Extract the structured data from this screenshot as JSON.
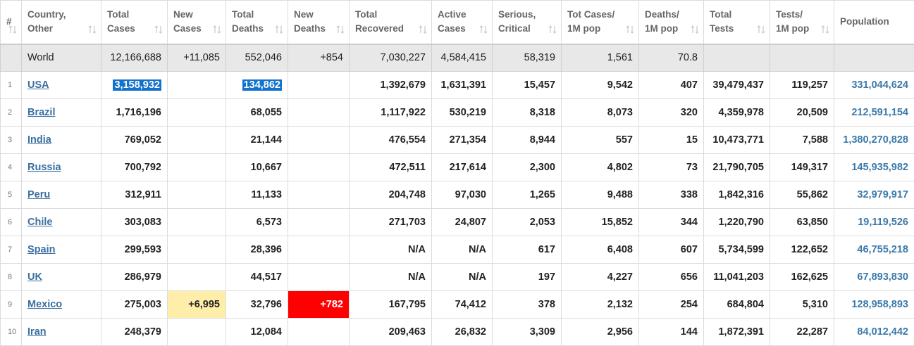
{
  "table": {
    "header": [
      [
        "#"
      ],
      [
        "Country,",
        "Other"
      ],
      [
        "Total",
        "Cases"
      ],
      [
        "New",
        "Cases"
      ],
      [
        "Total",
        "Deaths"
      ],
      [
        "New",
        "Deaths"
      ],
      [
        "Total",
        "Recovered"
      ],
      [
        "Active",
        "Cases"
      ],
      [
        "Serious,",
        "Critical"
      ],
      [
        "Tot Cases/",
        "1M pop"
      ],
      [
        "Deaths/",
        "1M pop"
      ],
      [
        "Total",
        "Tests"
      ],
      [
        "Tests/",
        "1M pop"
      ],
      [
        "Population"
      ]
    ],
    "world": {
      "country": "World",
      "cells": [
        "12,166,688",
        "+11,085",
        "552,046",
        "+854",
        "7,030,227",
        "4,584,415",
        "58,319",
        "1,561",
        "70.8",
        null,
        null,
        null
      ]
    },
    "rows": [
      {
        "rank": "1",
        "country": "USA",
        "cells": [
          "3,158,932",
          null,
          "134,862",
          null,
          "1,392,679",
          "1,631,391",
          "15,457",
          "9,542",
          "407",
          "39,479,437",
          "119,257",
          "331,044,624"
        ]
      },
      {
        "rank": "2",
        "country": "Brazil",
        "cells": [
          "1,716,196",
          null,
          "68,055",
          null,
          "1,117,922",
          "530,219",
          "8,318",
          "8,073",
          "320",
          "4,359,978",
          "20,509",
          "212,591,154"
        ]
      },
      {
        "rank": "3",
        "country": "India",
        "cells": [
          "769,052",
          null,
          "21,144",
          null,
          "476,554",
          "271,354",
          "8,944",
          "557",
          "15",
          "10,473,771",
          "7,588",
          "1,380,270,828"
        ]
      },
      {
        "rank": "4",
        "country": "Russia",
        "cells": [
          "700,792",
          null,
          "10,667",
          null,
          "472,511",
          "217,614",
          "2,300",
          "4,802",
          "73",
          "21,790,705",
          "149,317",
          "145,935,982"
        ]
      },
      {
        "rank": "5",
        "country": "Peru",
        "cells": [
          "312,911",
          null,
          "11,133",
          null,
          "204,748",
          "97,030",
          "1,265",
          "9,488",
          "338",
          "1,842,316",
          "55,862",
          "32,979,917"
        ]
      },
      {
        "rank": "6",
        "country": "Chile",
        "cells": [
          "303,083",
          null,
          "6,573",
          null,
          "271,703",
          "24,807",
          "2,053",
          "15,852",
          "344",
          "1,220,790",
          "63,850",
          "19,119,526"
        ]
      },
      {
        "rank": "7",
        "country": "Spain",
        "cells": [
          "299,593",
          null,
          "28,396",
          null,
          "N/A",
          "N/A",
          "617",
          "6,408",
          "607",
          "5,734,599",
          "122,652",
          "46,755,218"
        ]
      },
      {
        "rank": "8",
        "country": "UK",
        "cells": [
          "286,979",
          null,
          "44,517",
          null,
          "N/A",
          "N/A",
          "197",
          "4,227",
          "656",
          "11,041,203",
          "162,625",
          "67,893,830"
        ]
      },
      {
        "rank": "9",
        "country": "Mexico",
        "cells": [
          "275,003",
          "+6,995",
          "32,796",
          "+782",
          "167,795",
          "74,412",
          "378",
          "2,132",
          "254",
          "684,804",
          "5,310",
          "128,958,893"
        ]
      },
      {
        "rank": "10",
        "country": "Iran",
        "cells": [
          "248,379",
          null,
          "12,084",
          null,
          "209,463",
          "26,832",
          "3,309",
          "2,956",
          "144",
          "1,872,391",
          "22,287",
          "84,012,442"
        ]
      }
    ]
  }
}
